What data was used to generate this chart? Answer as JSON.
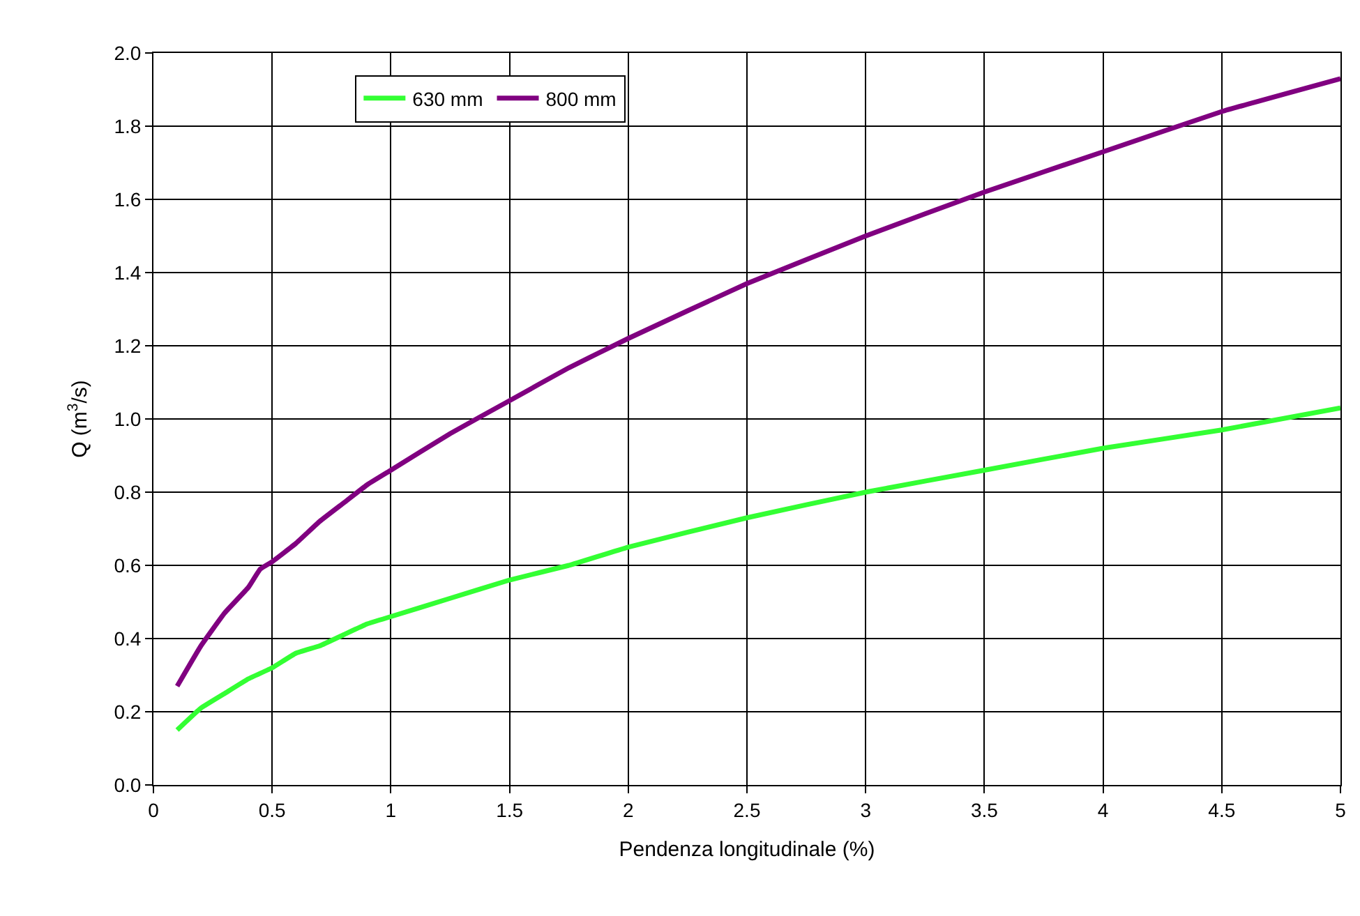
{
  "chart_data": {
    "type": "line",
    "xlabel": "Pendenza longitudinale (%)",
    "ylabel": "Q (m$^{3}$/s)",
    "xlim": [
      0,
      5
    ],
    "xticks": [
      0,
      0.5,
      1,
      1.5,
      2,
      2.5,
      3,
      3.5,
      4,
      4.5,
      5
    ],
    "ylim": [
      0,
      2
    ],
    "yticks": [
      {
        "value": 0,
        "label": "0.0"
      },
      {
        "value": 0.2,
        "label": "0.2"
      },
      {
        "value": 0.4,
        "label": "0.4"
      },
      {
        "value": 0.6,
        "label": "0.6"
      },
      {
        "value": 0.8,
        "label": "0.8"
      },
      {
        "value": 1,
        "label": "1.0"
      },
      {
        "value": 1.2,
        "label": "1.2"
      },
      {
        "value": 1.4,
        "label": "1.4"
      },
      {
        "value": 1.6,
        "label": "1.6"
      },
      {
        "value": 1.8,
        "label": "1.8"
      },
      {
        "value": 2,
        "label": "2.0"
      }
    ],
    "grid": true,
    "legend": "top left",
    "marker": "none",
    "line_style": "solid",
    "series": [
      {
        "name": "630 mm",
        "color": "#33ff33",
        "x": [
          0.1,
          0.2,
          0.3,
          0.4,
          0.5,
          0.6,
          0.7,
          0.8,
          0.9,
          1.0,
          1.25,
          1.5,
          1.75,
          2,
          2.5,
          3,
          3.5,
          4,
          4.5,
          5
        ],
        "values": [
          0.15,
          0.21,
          0.25,
          0.29,
          0.32,
          0.36,
          0.38,
          0.41,
          0.44,
          0.46,
          0.51,
          0.56,
          0.6,
          0.65,
          0.73,
          0.8,
          0.86,
          0.92,
          0.97,
          1.03
        ]
      },
      {
        "name": "800 mm",
        "color": "#800080",
        "x": [
          0.1,
          0.2,
          0.3,
          0.4,
          0.45,
          0.5,
          0.6,
          0.7,
          0.8,
          0.9,
          1.0,
          1.25,
          1.5,
          1.75,
          2,
          2.5,
          3,
          3.5,
          4,
          4.5,
          5
        ],
        "values": [
          0.27,
          0.38,
          0.47,
          0.54,
          0.59,
          0.61,
          0.66,
          0.72,
          0.77,
          0.82,
          0.86,
          0.96,
          1.05,
          1.14,
          1.22,
          1.37,
          1.5,
          1.62,
          1.73,
          1.84,
          1.93
        ]
      }
    ]
  }
}
